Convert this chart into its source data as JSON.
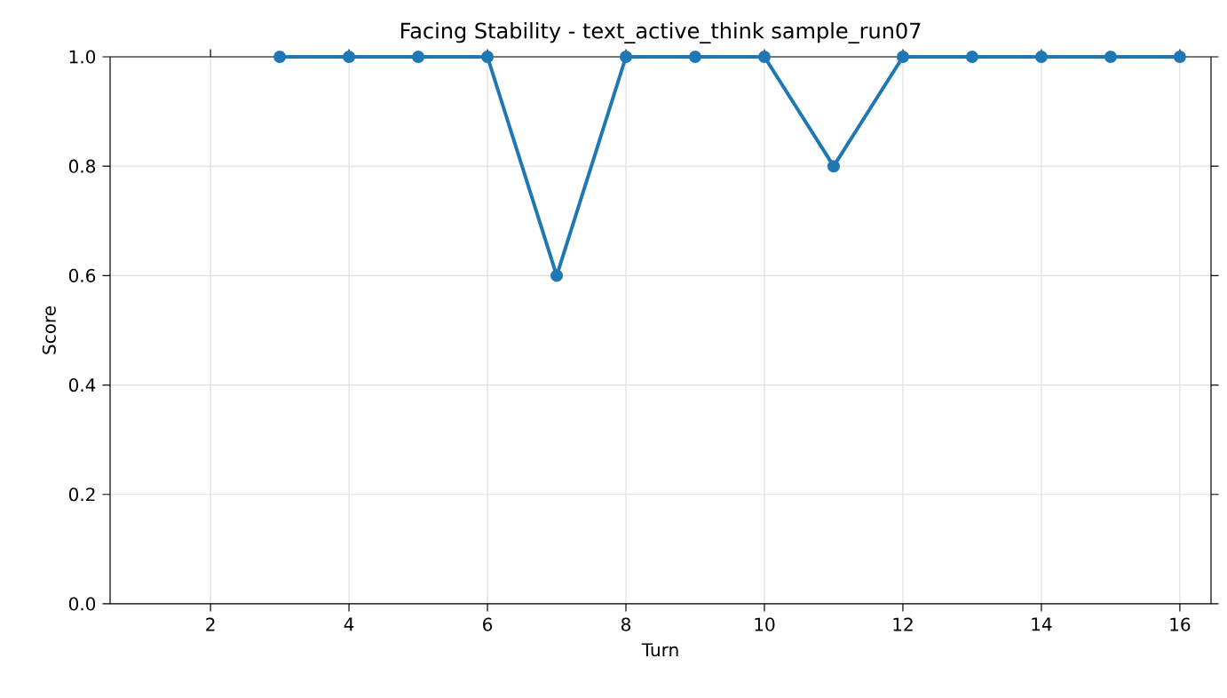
{
  "chart_data": {
    "type": "line",
    "title": "Facing Stability - text_active_think sample_run07",
    "xlabel": "Turn",
    "ylabel": "Score",
    "x": [
      3,
      4,
      5,
      6,
      7,
      8,
      9,
      10,
      11,
      12,
      13,
      14,
      15,
      16
    ],
    "series": [
      {
        "color": "#1f77b4",
        "values": [
          1.0,
          1.0,
          1.0,
          1.0,
          0.6,
          1.0,
          1.0,
          1.0,
          0.8,
          1.0,
          1.0,
          1.0,
          1.0,
          1.0
        ]
      }
    ],
    "xlim": [
      0.55,
      16.45
    ],
    "ylim": [
      0,
      1
    ],
    "xticks": [
      2,
      4,
      6,
      8,
      10,
      12,
      14,
      16
    ],
    "yticks": [
      {
        "value": 0,
        "label": "0.0"
      },
      {
        "value": 0.2,
        "label": "0.2"
      },
      {
        "value": 0.4,
        "label": "0.4"
      },
      {
        "value": 0.6,
        "label": "0.6"
      },
      {
        "value": 0.8,
        "label": "0.8"
      },
      {
        "value": 1,
        "label": "1.0"
      }
    ],
    "grid": true,
    "marker": "circle",
    "line_style": "solid"
  }
}
